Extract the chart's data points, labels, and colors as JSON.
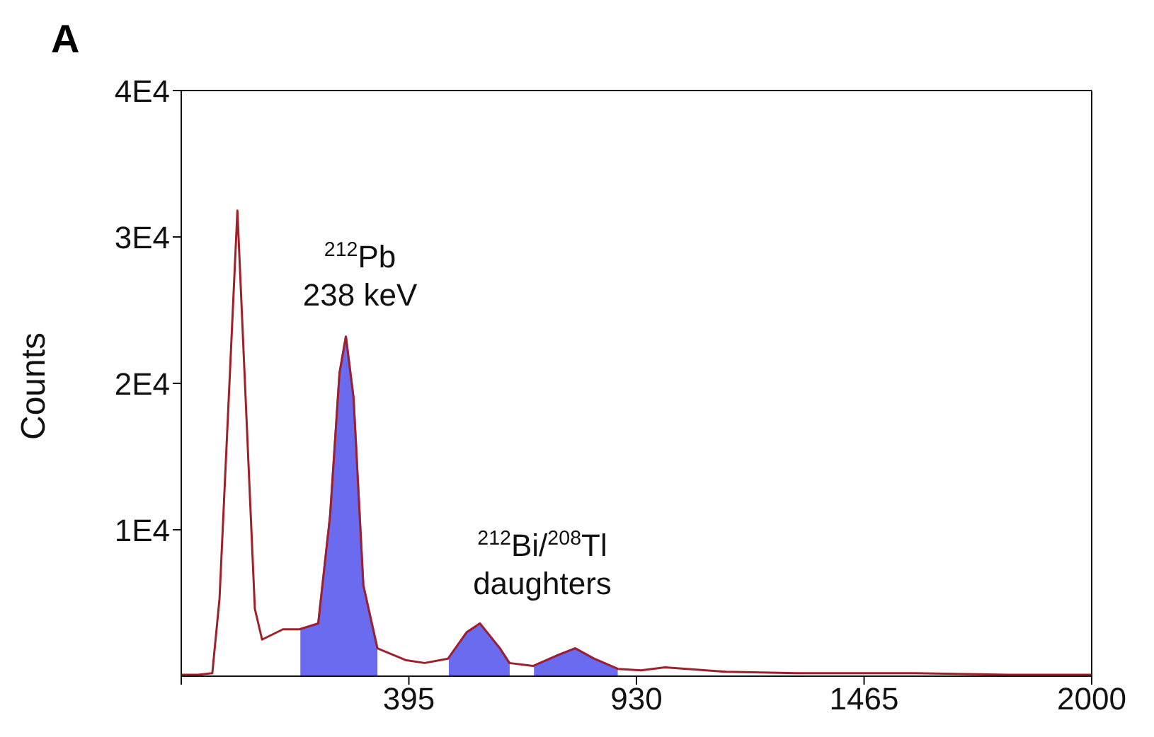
{
  "chart_data": {
    "type": "line",
    "ylabel": "Counts",
    "xlim": [
      -140,
      2000
    ],
    "xticks": [
      {
        "value": -140,
        "label": null
      },
      395,
      930,
      1465,
      2000
    ],
    "ylim": [
      0,
      40000
    ],
    "yticks": [
      {
        "value": 10000,
        "label": "1E4"
      },
      {
        "value": 20000,
        "label": "2E4"
      },
      {
        "value": 30000,
        "label": "3E4"
      },
      {
        "value": 40000,
        "label": "4E4"
      }
    ],
    "grid": false,
    "legend": false,
    "annotations": [
      "A",
      {
        "text": "$^{212}$Pb\n238 keV",
        "x": 247,
        "y": 23200
      },
      "$^{212}$Bi/$^{208}$Tl\ndaughters"
    ],
    "series": [
      {
        "color": "#a0202a",
        "x": [
          -140,
          -100,
          -67,
          -50,
          -8,
          33,
          50,
          99,
          138,
          182,
          210,
          232,
          247,
          265,
          288,
          321,
          387,
          432,
          487,
          531,
          562,
          609,
          631,
          687,
          742,
          786,
          830,
          886,
          941,
          997,
          1140,
          1306,
          1584,
          1804,
          2000
        ],
        "values": [
          100,
          100,
          200,
          5300,
          31800,
          4600,
          2500,
          3200,
          3200,
          3600,
          11000,
          20700,
          23200,
          19000,
          6200,
          1900,
          1100,
          900,
          1200,
          3000,
          3600,
          1900,
          900,
          700,
          1400,
          1900,
          1200,
          500,
          400,
          600,
          300,
          200,
          200,
          100,
          100
        ]
      },
      {
        "type": "area",
        "color": "#6b6bf0",
        "x": [
          140,
          182,
          210,
          232,
          247,
          265,
          288,
          321
        ],
        "values": [
          3200,
          3600,
          11000,
          20700,
          23200,
          19000,
          6200,
          1900
        ]
      },
      {
        "type": "area",
        "color": "#6b6bf0",
        "x": [
          489,
          531,
          562,
          609,
          632
        ],
        "values": [
          1200,
          3000,
          3600,
          1900,
          900
        ]
      },
      {
        "type": "area",
        "color": "#6b6bf0",
        "x": [
          689,
          742,
          786,
          830,
          886
        ],
        "values": [
          700,
          1400,
          1900,
          1200,
          500
        ]
      }
    ]
  }
}
